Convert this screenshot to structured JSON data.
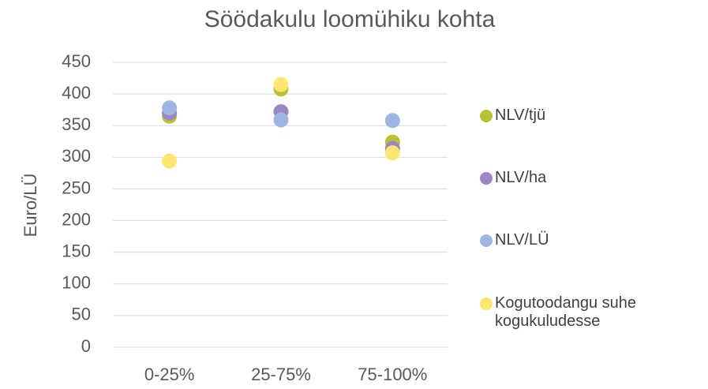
{
  "chart_data": {
    "type": "scatter",
    "title": "Söödakulu loomühiku kohta",
    "y_label": "Euro/LÜ",
    "categories": [
      "0-25%",
      "25-75%",
      "75-100%"
    ],
    "series": [
      {
        "name": "NLV/tjü",
        "color": "#b5c334",
        "values": [
          365,
          408,
          324
        ]
      },
      {
        "name": "NLV/ha",
        "color": "#9e86c3",
        "values": [
          370,
          372,
          314
        ]
      },
      {
        "name": "NLV/LÜ",
        "color": "#9db6e2",
        "values": [
          378,
          359,
          358
        ]
      },
      {
        "name": "Kogutoodangu suhe kogukuludesse",
        "color": "#fce770",
        "values": [
          294,
          415,
          307
        ]
      }
    ],
    "ylim": [
      0,
      450
    ],
    "yticks": [
      0,
      50,
      100,
      150,
      200,
      250,
      300,
      350,
      400,
      450
    ],
    "grid": true,
    "legend": "right"
  }
}
